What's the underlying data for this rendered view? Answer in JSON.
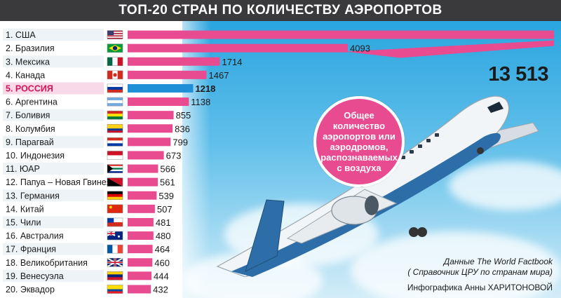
{
  "title": "ТОП-20 СТРАН ПО КОЛИЧЕСТВУ АЭРОПОРТОВ",
  "note": "Общее количество аэропортов или аэродромов, распознаваемых с воздуха",
  "usa_value_label": "13 513",
  "source_line1": "Данные The World Factbook",
  "source_line2": "( Справочник ЦРУ по странам мира)",
  "credit": "Инфографика Анны ХАРИТОНОВОЙ",
  "colors": {
    "bar": "#e84b8f",
    "highlight_bar": "#1e90d8",
    "highlight_row": "#f8d9e7",
    "title_bg": "#3a3a3c"
  },
  "icons": [
    "flag-icon",
    "airplane-illustration"
  ],
  "chart_data": {
    "type": "bar",
    "orientation": "horizontal",
    "title": "ТОП-20 СТРАН ПО КОЛИЧЕСТВУ АЭРОПОРТОВ",
    "categories": [
      "1. США",
      "2. Бразилия",
      "3. Мексика",
      "4. Канада",
      "5. РОССИЯ",
      "6. Аргентина",
      "7. Боливия",
      "8. Колумбия",
      "9. Парагвай",
      "10. Индонезия",
      "11. ЮАР",
      "12. Папуа – Новая Гвинея",
      "13. Германия",
      "14. Китай",
      "15. Чили",
      "16. Австралия",
      "17. Франция",
      "18. Великобритания",
      "19. Венесуэла",
      "20. Эквадор"
    ],
    "values": [
      13513,
      4093,
      1714,
      1467,
      1218,
      1138,
      855,
      836,
      799,
      673,
      566,
      561,
      539,
      507,
      481,
      480,
      464,
      460,
      444,
      432
    ],
    "value_labels": [
      "13 513",
      "4093",
      "1714",
      "1467",
      "1218",
      "1138",
      "855",
      "836",
      "799",
      "673",
      "566",
      "561",
      "539",
      "507",
      "481",
      "480",
      "464",
      "460",
      "444",
      "432"
    ],
    "highlight_index": 4,
    "flags": [
      "usa",
      "brazil",
      "mexico",
      "canada",
      "russia",
      "argentina",
      "bolivia",
      "colombia",
      "paraguay",
      "indonesia",
      "south-africa",
      "papua-new-guinea",
      "germany",
      "china",
      "chile",
      "australia",
      "france",
      "united-kingdom",
      "venezuela",
      "ecuador"
    ],
    "xlim": [
      0,
      4093
    ],
    "grid": false,
    "legend": "none"
  }
}
